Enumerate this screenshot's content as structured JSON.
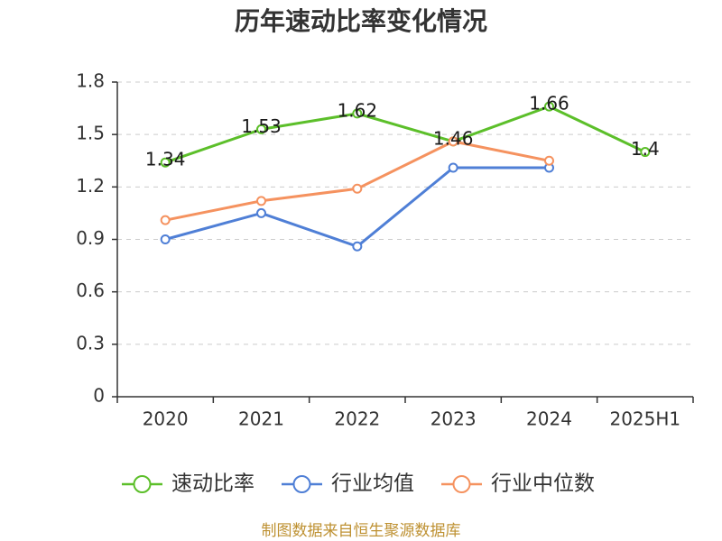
{
  "chart_data": {
    "type": "line",
    "title": "历年速动比率变化情况",
    "categories": [
      "2020",
      "2021",
      "2022",
      "2023",
      "2024",
      "2025H1"
    ],
    "ylim": [
      0,
      1.8
    ],
    "yticks": [
      0,
      0.3,
      0.6,
      0.9,
      1.2,
      1.5,
      1.8
    ],
    "grid": true,
    "legend": "bottom",
    "series": [
      {
        "name": "速动比率",
        "color": "#5cbf2a",
        "values": [
          1.34,
          1.53,
          1.62,
          1.46,
          1.66,
          1.4
        ],
        "data_labels": true
      },
      {
        "name": "行业均值",
        "color": "#4f7fd6",
        "values": [
          0.9,
          1.05,
          0.86,
          1.31,
          1.31,
          null
        ],
        "data_labels": false
      },
      {
        "name": "行业中位数",
        "color": "#f5925f",
        "values": [
          1.01,
          1.12,
          1.19,
          1.46,
          1.35,
          null
        ],
        "data_labels": false
      }
    ]
  },
  "source_note": {
    "text": "制图数据来自恒生聚源数据库",
    "color": "#be9132"
  }
}
